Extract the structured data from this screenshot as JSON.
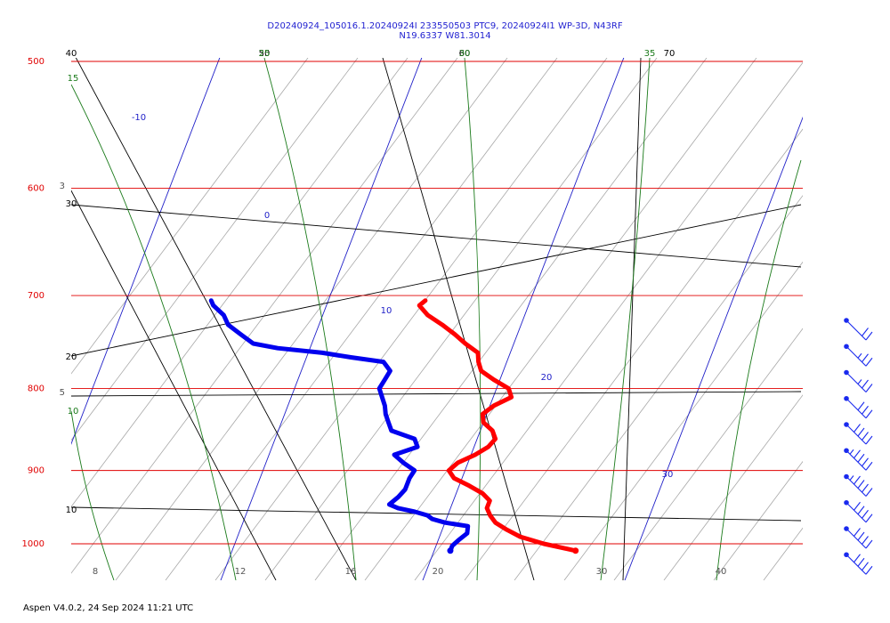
{
  "header": {
    "line1": "D20240924_105016.1.20240924I 233550503 PTC9, 20240924I1 WP-3D, N43RF",
    "line2": "N19.6337 W81.3014"
  },
  "footer": "Aspen V4.0.2, 24 Sep 2024  11:21 UTC",
  "chart_data": {
    "type": "line",
    "title": "D20240924_105016.1.20240924I 233550503 PTC9, 20240924I1 WP-3D, N43RF",
    "subtitle": "N19.6337 W81.3014",
    "pressure_ticks": [
      500,
      600,
      700,
      800,
      900,
      1000
    ],
    "temperature_ticks": [
      "8",
      "12",
      "16",
      "20",
      "30",
      "40"
    ],
    "isotherm_labels": [
      "-10",
      "0",
      "10",
      "20",
      "30"
    ],
    "mixing_ratio_labels": [
      "3",
      "5"
    ],
    "dry_adiabat_labels": [
      "40",
      "30",
      "20",
      "10",
      "50",
      "60",
      "70"
    ],
    "moist_adiabat_labels": [
      "15",
      "10",
      "25",
      "30",
      "35"
    ],
    "colors": {
      "isobar": "#e00000",
      "isotherm": "#2020c8",
      "dry_adiabat": "#000000",
      "moist_adiabat": "#1a7a1a",
      "mixing_ratio": "#999999",
      "temperature_profile": "#ff0000",
      "dewpoint_profile": "#0000ee",
      "wind_barb": "#1a2aee"
    },
    "series": [
      {
        "type": "temperature",
        "points": [
          [
            1010,
            27.0
          ],
          [
            1000,
            25.3
          ],
          [
            990,
            24.0
          ],
          [
            980,
            23.2
          ],
          [
            970,
            22.5
          ],
          [
            960,
            22.1
          ],
          [
            950,
            21.8
          ],
          [
            940,
            21.8
          ],
          [
            930,
            21.3
          ],
          [
            920,
            20.5
          ],
          [
            910,
            19.6
          ],
          [
            900,
            19.2
          ],
          [
            890,
            19.5
          ],
          [
            880,
            20.2
          ],
          [
            870,
            20.7
          ],
          [
            860,
            20.9
          ],
          [
            850,
            20.6
          ],
          [
            840,
            20.0
          ],
          [
            830,
            19.8
          ],
          [
            820,
            20.2
          ],
          [
            810,
            20.9
          ],
          [
            800,
            20.6
          ],
          [
            790,
            19.7
          ],
          [
            780,
            18.9
          ],
          [
            770,
            18.6
          ],
          [
            760,
            18.4
          ],
          [
            750,
            17.6
          ],
          [
            740,
            16.9
          ],
          [
            730,
            16.1
          ],
          [
            720,
            15.2
          ],
          [
            710,
            14.6
          ],
          [
            705,
            14.8
          ]
        ]
      },
      {
        "type": "dewpoint",
        "points": [
          [
            1010,
            20.8
          ],
          [
            1003,
            20.8
          ],
          [
            995,
            21.0
          ],
          [
            985,
            21.3
          ],
          [
            975,
            21.2
          ],
          [
            970,
            20.0
          ],
          [
            965,
            19.3
          ],
          [
            960,
            19.0
          ],
          [
            955,
            18.3
          ],
          [
            950,
            17.4
          ],
          [
            945,
            16.9
          ],
          [
            935,
            17.2
          ],
          [
            925,
            17.4
          ],
          [
            910,
            17.4
          ],
          [
            900,
            17.5
          ],
          [
            890,
            16.8
          ],
          [
            880,
            16.2
          ],
          [
            870,
            17.2
          ],
          [
            860,
            16.9
          ],
          [
            850,
            15.6
          ],
          [
            840,
            15.3
          ],
          [
            830,
            15.0
          ],
          [
            820,
            14.8
          ],
          [
            810,
            14.5
          ],
          [
            800,
            14.2
          ],
          [
            790,
            14.3
          ],
          [
            780,
            14.4
          ],
          [
            770,
            13.9
          ],
          [
            765,
            12.2
          ],
          [
            760,
            10.7
          ],
          [
            755,
            8.4
          ],
          [
            750,
            7.1
          ],
          [
            740,
            6.3
          ],
          [
            730,
            5.5
          ],
          [
            720,
            5.1
          ],
          [
            710,
            4.4
          ],
          [
            705,
            4.2
          ]
        ]
      }
    ],
    "wind_barbs": [
      {
        "pressure": 700,
        "speed_kt": 20
      },
      {
        "pressure": 725,
        "speed_kt": 25
      },
      {
        "pressure": 750,
        "speed_kt": 25
      },
      {
        "pressure": 775,
        "speed_kt": 30
      },
      {
        "pressure": 800,
        "speed_kt": 40
      },
      {
        "pressure": 825,
        "speed_kt": 45
      },
      {
        "pressure": 850,
        "speed_kt": 45
      },
      {
        "pressure": 875,
        "speed_kt": 40
      },
      {
        "pressure": 900,
        "speed_kt": 40
      },
      {
        "pressure": 925,
        "speed_kt": 40
      }
    ],
    "grid": true
  }
}
